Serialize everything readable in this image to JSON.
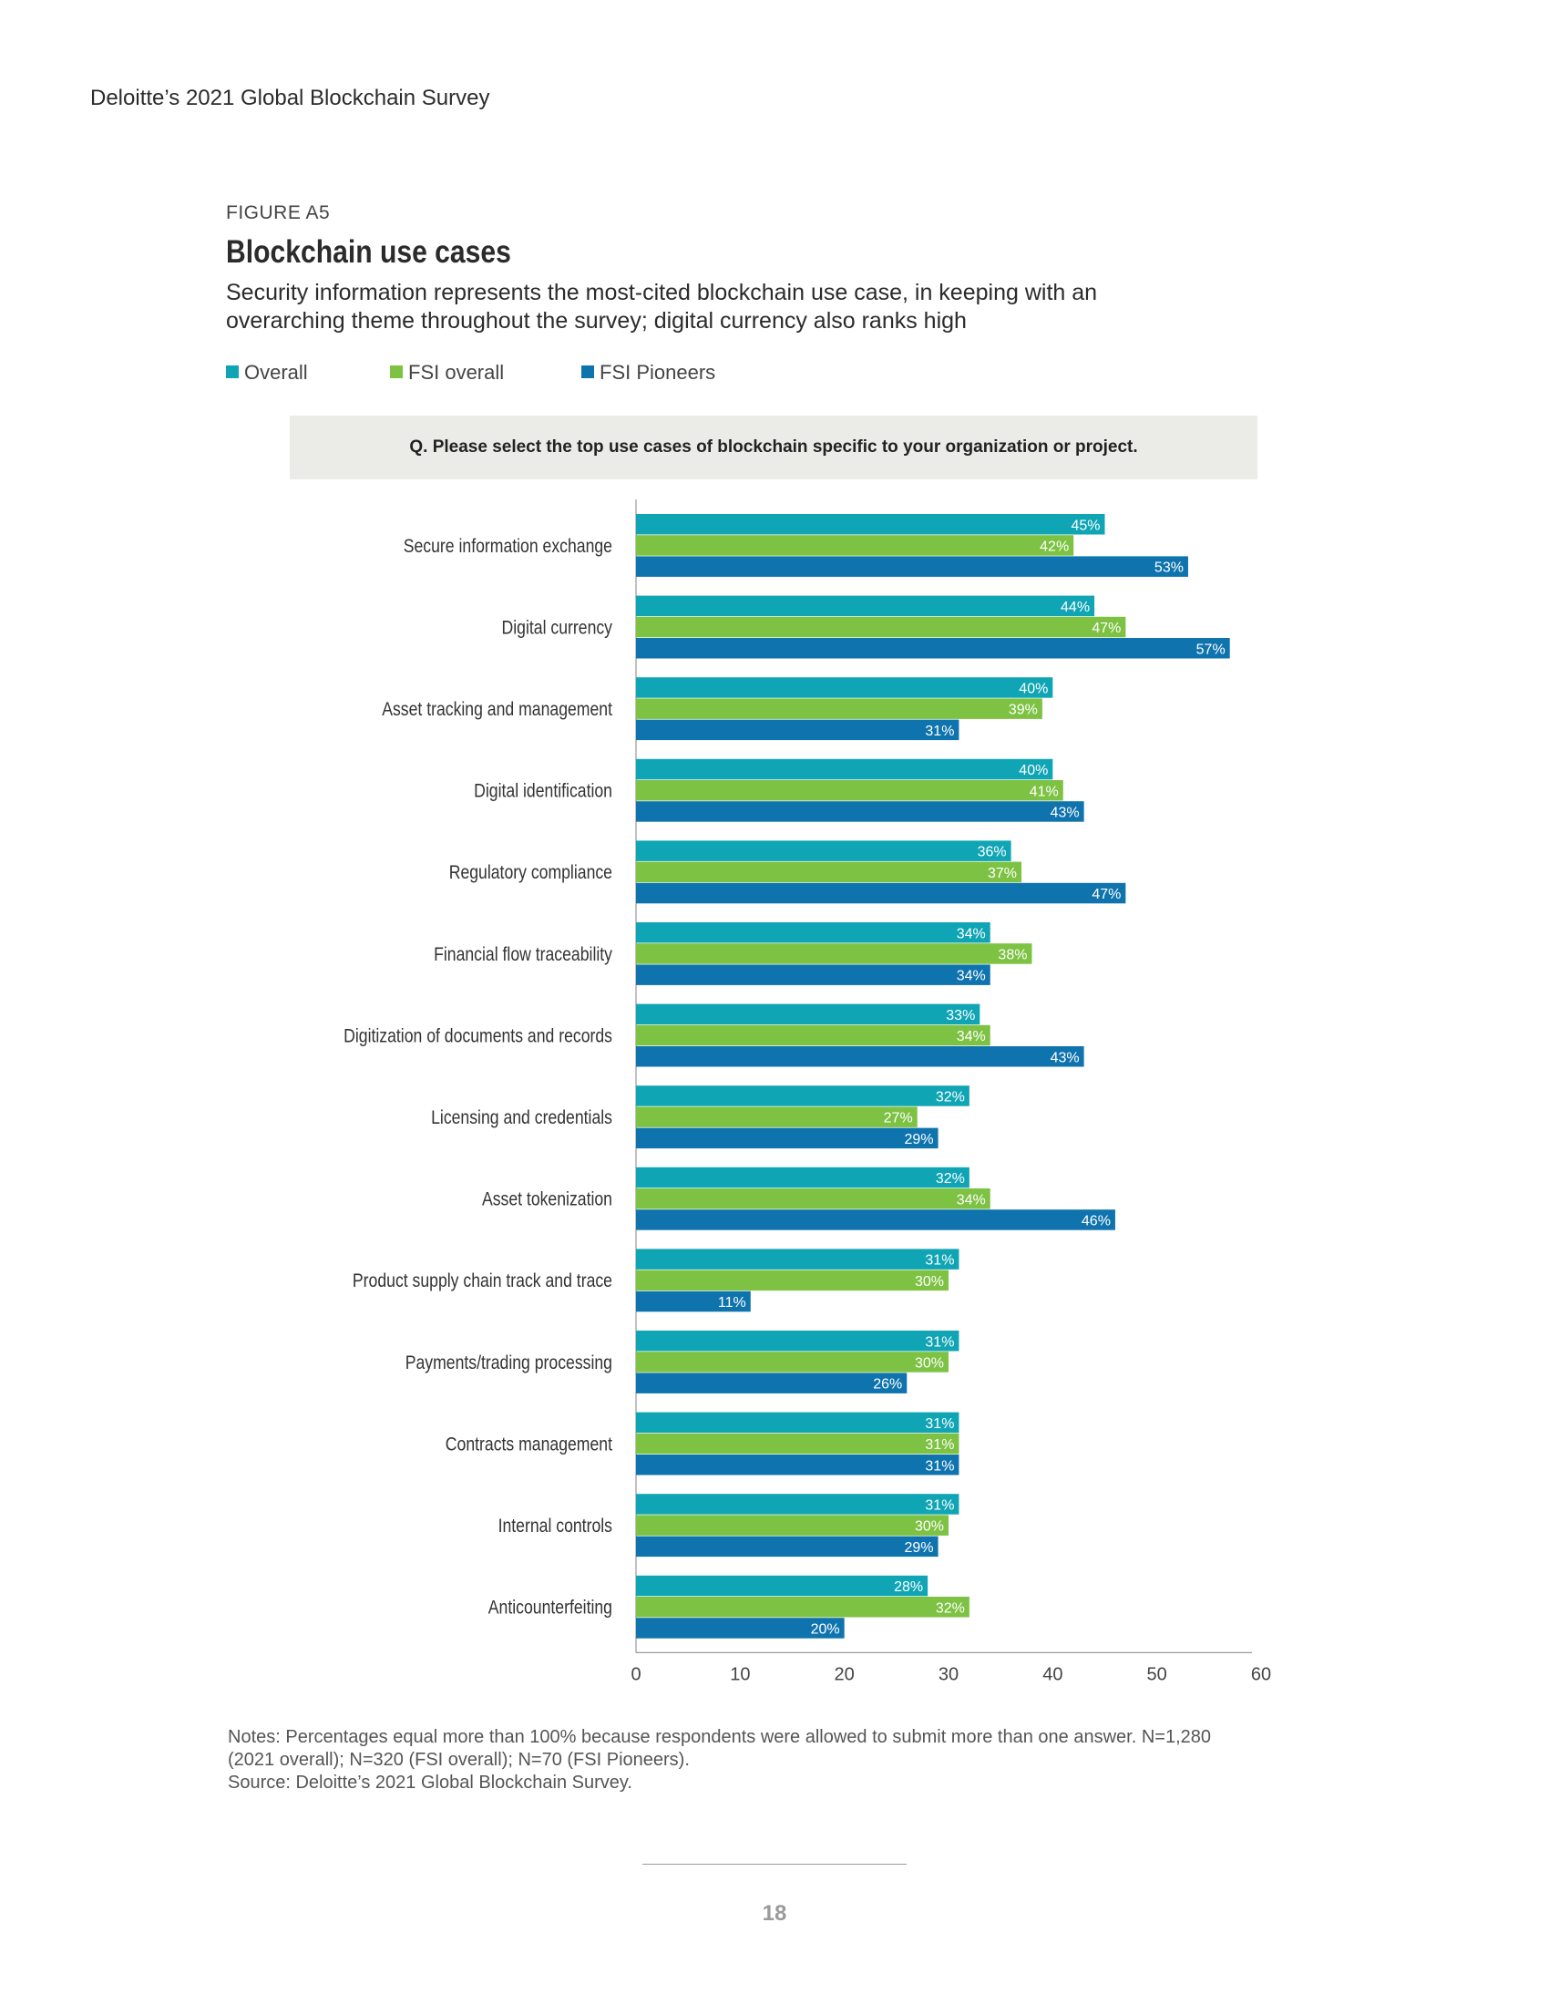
{
  "header": {
    "running_title": "Deloitte’s 2021 Global Blockchain Survey"
  },
  "figure": {
    "label": "FIGURE A5",
    "title": "Blockchain use cases",
    "subtitle_line1": "Security information represents the most-cited blockchain use case, in keeping with an",
    "subtitle_line2": "overarching theme throughout the survey; digital currency also ranks high",
    "question": "Q. Please select the top use cases of blockchain specific to your organization or project."
  },
  "legend": [
    {
      "label": "Overall",
      "color": "#10a5b5"
    },
    {
      "label": "FSI overall",
      "color": "#7dc242"
    },
    {
      "label": "FSI Pioneers",
      "color": "#0f74ae"
    }
  ],
  "chart_data": {
    "type": "bar",
    "orientation": "horizontal",
    "categories": [
      "Secure information exchange",
      "Digital currency",
      "Asset tracking and management",
      "Digital identification",
      "Regulatory compliance",
      "Financial flow traceability",
      "Digitization of documents and records",
      "Licensing and credentials",
      "Asset tokenization",
      "Product supply chain track and trace",
      "Payments/trading processing",
      "Contracts management",
      "Internal controls",
      "Anticounterfeiting"
    ],
    "series": [
      {
        "name": "Overall",
        "color": "#10a5b5",
        "values": [
          45,
          44,
          40,
          40,
          36,
          34,
          33,
          32,
          32,
          31,
          31,
          31,
          31,
          28
        ]
      },
      {
        "name": "FSI overall",
        "color": "#7dc242",
        "values": [
          42,
          47,
          39,
          41,
          37,
          38,
          34,
          27,
          34,
          30,
          30,
          31,
          30,
          32
        ]
      },
      {
        "name": "FSI Pioneers",
        "color": "#0f74ae",
        "values": [
          53,
          57,
          31,
          43,
          47,
          34,
          43,
          29,
          46,
          11,
          26,
          31,
          29,
          20
        ]
      }
    ],
    "value_suffix": "%",
    "xlim": [
      0,
      60
    ],
    "xticks": [
      0,
      10,
      20,
      30,
      40,
      50,
      60
    ],
    "xlabel": "",
    "ylabel": "",
    "title": "Blockchain use cases",
    "grid": false
  },
  "notes": {
    "line1": "Notes: Percentages equal more than 100% because respondents were allowed to submit more than one answer. N=1,280",
    "line2": "(2021 overall); N=320 (FSI overall); N=70 (FSI Pioneers).",
    "source": "Source: Deloitte’s 2021 Global Blockchain Survey."
  },
  "footer": {
    "page_number": "18"
  }
}
